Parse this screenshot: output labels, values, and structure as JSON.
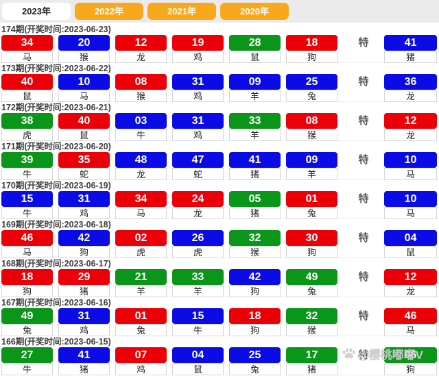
{
  "tabs": [
    {
      "label": "2023年",
      "active": true
    },
    {
      "label": "2022年",
      "active": false
    },
    {
      "label": "2021年",
      "active": false
    },
    {
      "label": "2020年",
      "active": false
    }
  ],
  "special_label": "特",
  "watermark": {
    "icon": "paw-icon",
    "text": "@樱桃嘟嘟V"
  },
  "colors": {
    "red": "#EC0008",
    "blue": "#0B0BE6",
    "green": "#0A9618",
    "orange": "#F8A81D"
  },
  "draws": [
    {
      "period": "174期",
      "header": "174期(开奖时间:2023-06-23)",
      "balls": [
        {
          "num": "34",
          "color": "red",
          "zodiac": "马"
        },
        {
          "num": "20",
          "color": "blue",
          "zodiac": "猴"
        },
        {
          "num": "12",
          "color": "red",
          "zodiac": "龙"
        },
        {
          "num": "19",
          "color": "red",
          "zodiac": "鸡"
        },
        {
          "num": "28",
          "color": "green",
          "zodiac": "鼠"
        },
        {
          "num": "18",
          "color": "red",
          "zodiac": "狗"
        }
      ],
      "special": {
        "num": "41",
        "color": "blue",
        "zodiac": "猪"
      }
    },
    {
      "period": "173期",
      "header": "173期(开奖时间:2023-06-22)",
      "balls": [
        {
          "num": "40",
          "color": "red",
          "zodiac": "鼠"
        },
        {
          "num": "10",
          "color": "blue",
          "zodiac": "马"
        },
        {
          "num": "08",
          "color": "red",
          "zodiac": "猴"
        },
        {
          "num": "31",
          "color": "blue",
          "zodiac": "鸡"
        },
        {
          "num": "09",
          "color": "blue",
          "zodiac": "羊"
        },
        {
          "num": "25",
          "color": "blue",
          "zodiac": "兔"
        }
      ],
      "special": {
        "num": "36",
        "color": "blue",
        "zodiac": "龙"
      }
    },
    {
      "period": "172期",
      "header": "172期(开奖时间:2023-06-21)",
      "balls": [
        {
          "num": "38",
          "color": "green",
          "zodiac": "虎"
        },
        {
          "num": "40",
          "color": "red",
          "zodiac": "鼠"
        },
        {
          "num": "03",
          "color": "blue",
          "zodiac": "牛"
        },
        {
          "num": "31",
          "color": "blue",
          "zodiac": "鸡"
        },
        {
          "num": "33",
          "color": "green",
          "zodiac": "羊"
        },
        {
          "num": "08",
          "color": "red",
          "zodiac": "猴"
        }
      ],
      "special": {
        "num": "12",
        "color": "red",
        "zodiac": "龙"
      }
    },
    {
      "period": "171期",
      "header": "171期(开奖时间:2023-06-20)",
      "balls": [
        {
          "num": "39",
          "color": "green",
          "zodiac": "牛"
        },
        {
          "num": "35",
          "color": "red",
          "zodiac": "蛇"
        },
        {
          "num": "48",
          "color": "blue",
          "zodiac": "龙"
        },
        {
          "num": "47",
          "color": "blue",
          "zodiac": "蛇"
        },
        {
          "num": "41",
          "color": "blue",
          "zodiac": "猪"
        },
        {
          "num": "09",
          "color": "blue",
          "zodiac": "羊"
        }
      ],
      "special": {
        "num": "10",
        "color": "blue",
        "zodiac": "马"
      }
    },
    {
      "period": "170期",
      "header": "170期(开奖时间:2023-06-19)",
      "balls": [
        {
          "num": "15",
          "color": "blue",
          "zodiac": "牛"
        },
        {
          "num": "31",
          "color": "blue",
          "zodiac": "鸡"
        },
        {
          "num": "34",
          "color": "red",
          "zodiac": "马"
        },
        {
          "num": "24",
          "color": "red",
          "zodiac": "龙"
        },
        {
          "num": "05",
          "color": "green",
          "zodiac": "猪"
        },
        {
          "num": "01",
          "color": "red",
          "zodiac": "兔"
        }
      ],
      "special": {
        "num": "10",
        "color": "blue",
        "zodiac": "马"
      }
    },
    {
      "period": "169期",
      "header": "169期(开奖时间:2023-06-18)",
      "balls": [
        {
          "num": "46",
          "color": "red",
          "zodiac": "马"
        },
        {
          "num": "42",
          "color": "blue",
          "zodiac": "狗"
        },
        {
          "num": "02",
          "color": "red",
          "zodiac": "虎"
        },
        {
          "num": "26",
          "color": "blue",
          "zodiac": "虎"
        },
        {
          "num": "32",
          "color": "green",
          "zodiac": "猴"
        },
        {
          "num": "30",
          "color": "red",
          "zodiac": "狗"
        }
      ],
      "special": {
        "num": "04",
        "color": "blue",
        "zodiac": "鼠"
      }
    },
    {
      "period": "168期",
      "header": "168期(开奖时间:2023-06-17)",
      "balls": [
        {
          "num": "18",
          "color": "red",
          "zodiac": "狗"
        },
        {
          "num": "29",
          "color": "red",
          "zodiac": "猪"
        },
        {
          "num": "21",
          "color": "green",
          "zodiac": "羊"
        },
        {
          "num": "33",
          "color": "green",
          "zodiac": "羊"
        },
        {
          "num": "42",
          "color": "blue",
          "zodiac": "狗"
        },
        {
          "num": "49",
          "color": "green",
          "zodiac": "兔"
        }
      ],
      "special": {
        "num": "12",
        "color": "red",
        "zodiac": "龙"
      }
    },
    {
      "period": "167期",
      "header": "167期(开奖时间:2023-06-16)",
      "balls": [
        {
          "num": "49",
          "color": "green",
          "zodiac": "兔"
        },
        {
          "num": "31",
          "color": "blue",
          "zodiac": "鸡"
        },
        {
          "num": "01",
          "color": "red",
          "zodiac": "兔"
        },
        {
          "num": "15",
          "color": "blue",
          "zodiac": "牛"
        },
        {
          "num": "18",
          "color": "red",
          "zodiac": "狗"
        },
        {
          "num": "32",
          "color": "green",
          "zodiac": "猴"
        }
      ],
      "special": {
        "num": "46",
        "color": "red",
        "zodiac": "马"
      }
    },
    {
      "period": "166期",
      "header": "166期(开奖时间:2023-06-15)",
      "balls": [
        {
          "num": "27",
          "color": "green",
          "zodiac": "牛"
        },
        {
          "num": "41",
          "color": "blue",
          "zodiac": "猪"
        },
        {
          "num": "07",
          "color": "red",
          "zodiac": "鸡"
        },
        {
          "num": "04",
          "color": "blue",
          "zodiac": "鼠"
        },
        {
          "num": "25",
          "color": "blue",
          "zodiac": "兔"
        },
        {
          "num": "17",
          "color": "green",
          "zodiac": "猪"
        }
      ],
      "special": {
        "num": "06",
        "color": "green",
        "zodiac": "狗"
      }
    }
  ]
}
